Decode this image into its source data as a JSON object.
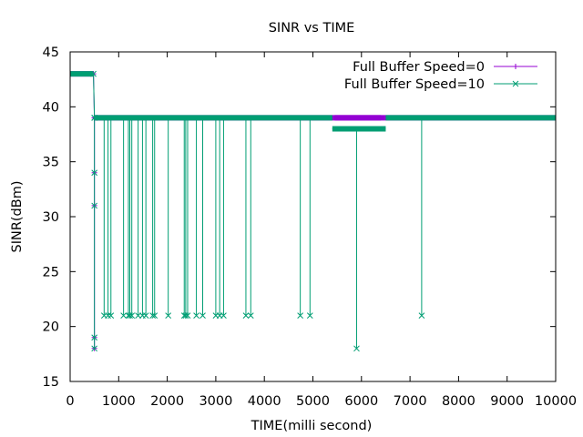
{
  "chart_data": {
    "type": "line",
    "title": "SINR vs TIME",
    "xlabel": "TIME(milli second)",
    "ylabel": "SINR(dBm)",
    "xlim": [
      0,
      10000
    ],
    "ylim": [
      15,
      45
    ],
    "xticks": [
      0,
      1000,
      2000,
      3000,
      4000,
      5000,
      6000,
      7000,
      8000,
      9000,
      10000
    ],
    "yticks": [
      15,
      20,
      25,
      30,
      35,
      40,
      45
    ],
    "xtick_labels": [
      "0",
      "1000",
      "2000",
      "3000",
      "4000",
      "5000",
      "6000",
      "7000",
      "8000",
      "9000",
      "10000"
    ],
    "ytick_labels": [
      "15",
      "20",
      "25",
      "30",
      "35",
      "40",
      "45"
    ],
    "grid": false,
    "legend_position": "top-right",
    "series": [
      {
        "name": "Full Buffer Speed=0",
        "color": "#9400d3",
        "marker": "plus",
        "segments": [
          {
            "x": [
              0,
              480
            ],
            "y": [
              43,
              43
            ]
          },
          {
            "x": [
              480,
              500,
              500,
              500,
              500,
              500,
              500
            ],
            "y": [
              43,
              39,
              34,
              31,
              19,
              18,
              39
            ]
          },
          {
            "x": [
              500,
              10000
            ],
            "y": [
              39,
              39
            ]
          }
        ],
        "bands": [
          {
            "x0": 5450,
            "x1": 6400,
            "y": 39
          }
        ]
      },
      {
        "name": "Full Buffer Speed=10",
        "color": "#009e73",
        "marker": "x",
        "segments": [
          {
            "x": [
              0,
              480
            ],
            "y": [
              43,
              43
            ]
          },
          {
            "x": [
              480,
              500,
              500,
              500,
              500,
              500,
              500
            ],
            "y": [
              43,
              39,
              34,
              31,
              19,
              18,
              39
            ]
          },
          {
            "x": [
              500,
              5400
            ],
            "y": [
              39,
              39
            ]
          },
          {
            "x": [
              5400,
              6500
            ],
            "y": [
              38,
              38
            ]
          },
          {
            "x": [
              6500,
              10000
            ],
            "y": [
              39,
              39
            ]
          }
        ],
        "dips": [
          {
            "x": 700,
            "y": 21
          },
          {
            "x": 780,
            "y": 21
          },
          {
            "x": 840,
            "y": 21
          },
          {
            "x": 1100,
            "y": 21
          },
          {
            "x": 1200,
            "y": 21
          },
          {
            "x": 1230,
            "y": 21
          },
          {
            "x": 1270,
            "y": 21
          },
          {
            "x": 1400,
            "y": 21
          },
          {
            "x": 1490,
            "y": 21
          },
          {
            "x": 1560,
            "y": 21
          },
          {
            "x": 1700,
            "y": 21
          },
          {
            "x": 1740,
            "y": 21
          },
          {
            "x": 2020,
            "y": 21
          },
          {
            "x": 2350,
            "y": 21
          },
          {
            "x": 2380,
            "y": 21
          },
          {
            "x": 2420,
            "y": 21
          },
          {
            "x": 2600,
            "y": 21
          },
          {
            "x": 2730,
            "y": 21
          },
          {
            "x": 3000,
            "y": 21
          },
          {
            "x": 3080,
            "y": 21
          },
          {
            "x": 3160,
            "y": 21
          },
          {
            "x": 3620,
            "y": 21
          },
          {
            "x": 3720,
            "y": 21
          },
          {
            "x": 4740,
            "y": 21
          },
          {
            "x": 4940,
            "y": 21
          },
          {
            "x": 5900,
            "y": 18
          },
          {
            "x": 7240,
            "y": 21
          }
        ]
      }
    ]
  }
}
